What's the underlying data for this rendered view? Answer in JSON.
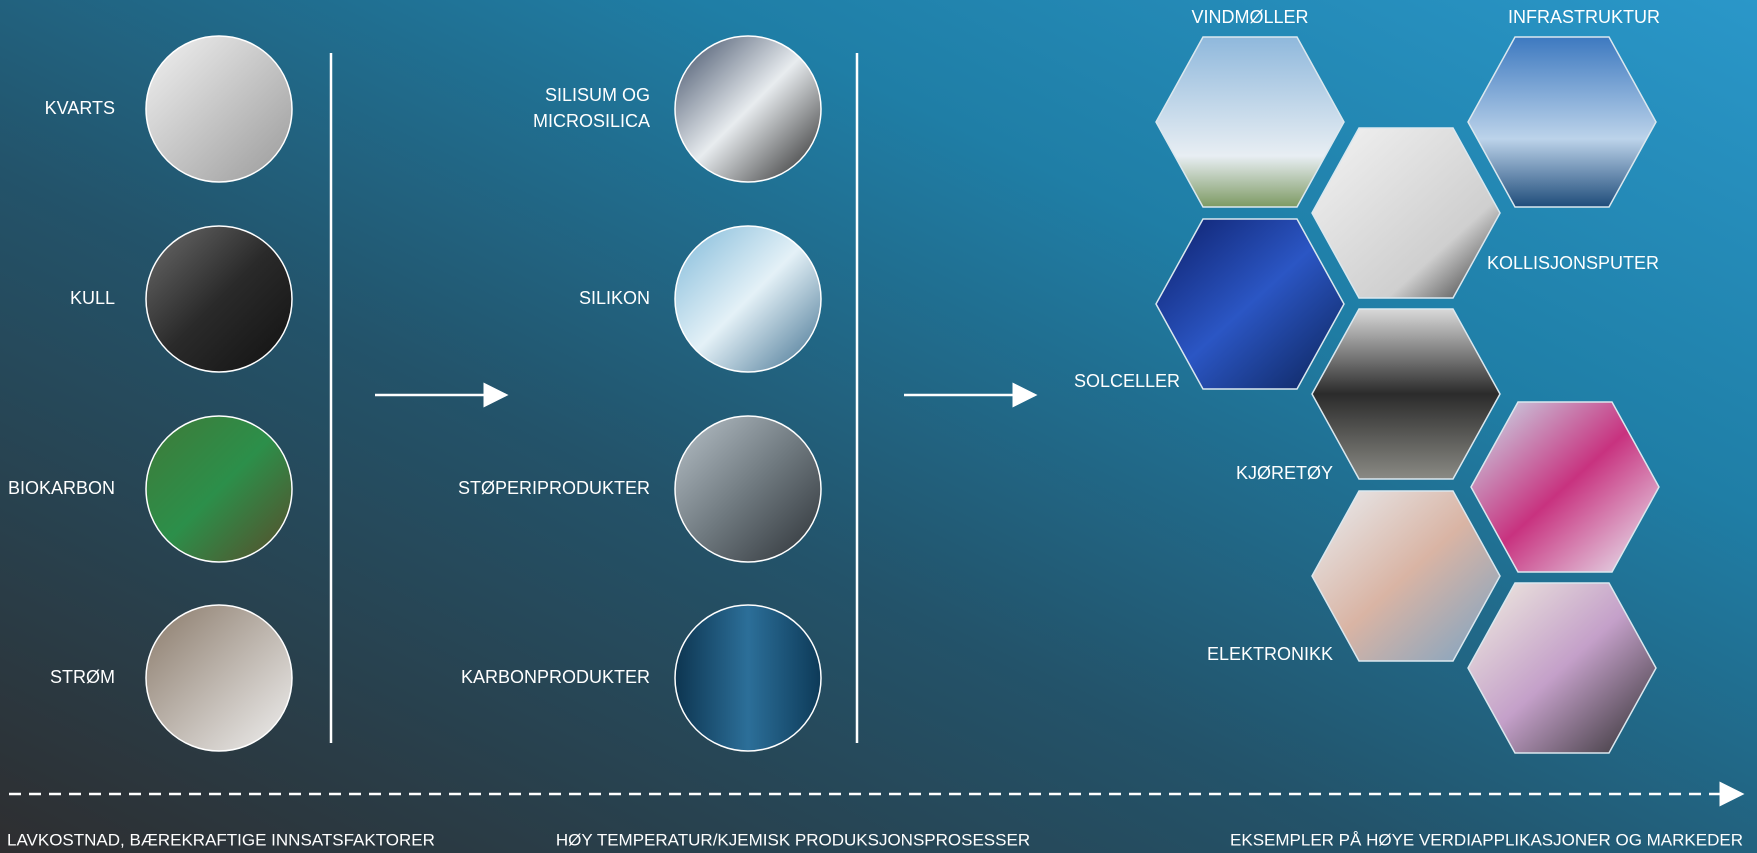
{
  "inputs": [
    "KVARTS",
    "KULL",
    "BIOKARBON",
    "STRØM"
  ],
  "products": [
    [
      "SILISUM OG",
      "MICROSILICA"
    ],
    [
      "SILIKON"
    ],
    [
      "STØPERIPRODUKTER"
    ],
    [
      "KARBONPRODUKTER"
    ]
  ],
  "applications": [
    "VINDMØLLER",
    "INFRASTRUKTUR",
    "KOLLISJONSPUTER",
    "SOLCELLER",
    "KJØRETØY",
    "ELEKTRONIKK"
  ],
  "footer": [
    "LAVKOSTNAD, BÆREKRAFTIGE INNSATSFAKTORER",
    "HØY TEMPERATUR/KJEMISK PRODUKSJONSPROSESSER",
    "EKSEMPLER PÅ HØYE VERDIAPPLIKASJONER OG MARKEDER"
  ]
}
